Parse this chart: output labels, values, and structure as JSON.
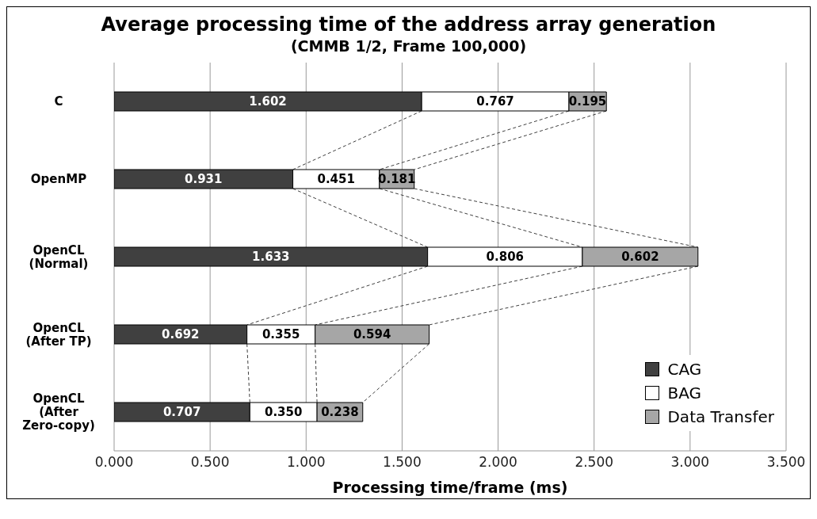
{
  "chart_data": {
    "type": "bar",
    "orientation": "horizontal",
    "stacked": true,
    "title": "Average processing time of the address array generation",
    "subtitle": "(CMMB 1/2, Frame 100,000)",
    "xlabel": "Processing time/frame (ms)",
    "categories": [
      "C",
      "OpenMP",
      "OpenCL\n(Normal)",
      "OpenCL\n(After TP)",
      "OpenCL\n(After\nZero-copy)"
    ],
    "series": [
      {
        "name": "CAG",
        "color": "#404040",
        "values": [
          1.602,
          0.931,
          1.633,
          0.692,
          0.707
        ],
        "value_labels": [
          "1.602",
          "0.931",
          "1.633",
          "0.692",
          "0.707"
        ]
      },
      {
        "name": "BAG",
        "color": "#ffffff",
        "values": [
          0.767,
          0.451,
          0.806,
          0.355,
          0.35
        ],
        "value_labels": [
          "0.767",
          "0.451",
          "0.806",
          "0.355",
          "0.350"
        ]
      },
      {
        "name": "Data Transfer",
        "color": "#a6a6a6",
        "values": [
          0.195,
          0.181,
          0.602,
          0.594,
          0.238
        ],
        "value_labels": [
          "0.195",
          "0.181",
          "0.602",
          "0.594",
          "0.238"
        ]
      }
    ],
    "xlim": [
      0,
      3.5
    ],
    "xticks": [
      {
        "value": 0,
        "label": "0.000"
      },
      {
        "value": 0.5,
        "label": "0.500"
      },
      {
        "value": 1,
        "label": "1.000"
      },
      {
        "value": 1.5,
        "label": "1.500"
      },
      {
        "value": 2,
        "label": "2.000"
      },
      {
        "value": 2.5,
        "label": "2.500"
      },
      {
        "value": 3,
        "label": "3.000"
      },
      {
        "value": 3.5,
        "label": "3.500"
      }
    ],
    "grid": "x",
    "legend": "bottom right"
  }
}
